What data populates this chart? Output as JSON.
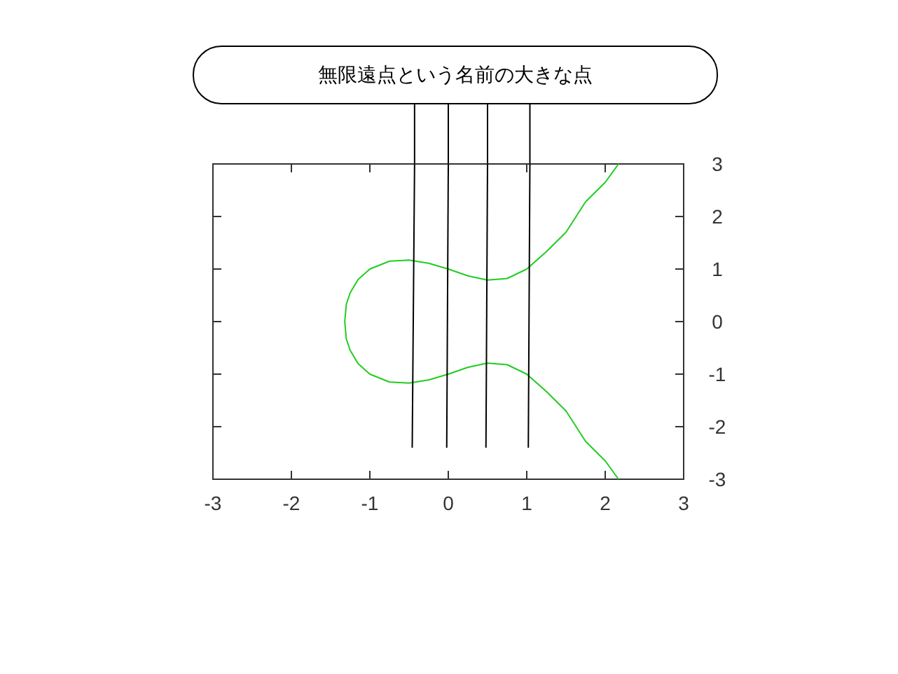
{
  "chart_data": {
    "type": "line",
    "title": "無限遠点という名前の大きな点",
    "xlim": [
      -3,
      3
    ],
    "ylim": [
      -3,
      3
    ],
    "xticks": [
      -3,
      -2,
      -1,
      0,
      1,
      2,
      3
    ],
    "yticks": [
      -3,
      -2,
      -1,
      0,
      1,
      2,
      3
    ],
    "series": [
      {
        "color": "#22cc22",
        "x": [
          2.17,
          2.0,
          1.75,
          1.5,
          1.25,
          1.0,
          0.75,
          0.5,
          0.25,
          0,
          -0.25,
          -0.5,
          -0.75,
          -1.0,
          -1.15,
          -1.25,
          -1.3,
          -1.32,
          -1.3,
          -1.25,
          -1.15,
          -1.0,
          -0.75,
          -0.5,
          -0.25,
          0,
          0.25,
          0.5,
          0.75,
          1.0,
          1.25,
          1.5,
          1.75,
          2.0,
          2.17
        ],
        "values": [
          3.0,
          2.65,
          2.28,
          1.7,
          1.33,
          1.0,
          0.82,
          0.79,
          0.87,
          1.0,
          1.11,
          1.17,
          1.15,
          1.0,
          0.8,
          0.55,
          0.33,
          0,
          -0.33,
          -0.55,
          -0.8,
          -1.0,
          -1.15,
          -1.17,
          -1.11,
          -1.0,
          -0.87,
          -0.79,
          -0.82,
          -1.0,
          -1.33,
          -1.7,
          -2.28,
          -2.65,
          -3.0
        ]
      },
      {
        "color": "#000000",
        "x": [
          -0.46,
          -0.43
        ],
        "values": [
          -2.4,
          3
        ]
      },
      {
        "color": "#000000",
        "x": [
          -0.02,
          0
        ],
        "values": [
          -2.4,
          3
        ]
      },
      {
        "color": "#000000",
        "x": [
          0.48,
          0.5
        ],
        "values": [
          -2.4,
          3
        ]
      },
      {
        "color": "#000000",
        "x": [
          1.02,
          1.04
        ],
        "values": [
          -2.4,
          3
        ]
      }
    ]
  }
}
